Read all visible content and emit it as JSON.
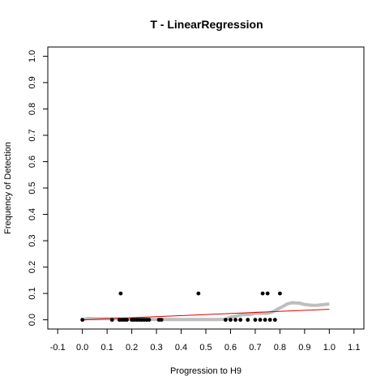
{
  "chart_data": {
    "type": "scatter",
    "title": "T - LinearRegression",
    "xlabel": "Progression to H9",
    "ylabel": "Frequency of Detection",
    "xlim": [
      -0.14,
      1.14
    ],
    "ylim": [
      -0.035,
      1.035
    ],
    "x_ticks": [
      "-0.1",
      "0.0",
      "0.1",
      "0.2",
      "0.3",
      "0.4",
      "0.5",
      "0.6",
      "0.7",
      "0.8",
      "0.9",
      "1.0",
      "1.1"
    ],
    "y_ticks": [
      "0.0",
      "0.1",
      "0.2",
      "0.3",
      "0.4",
      "0.5",
      "0.6",
      "0.7",
      "0.8",
      "0.9",
      "1.0"
    ],
    "grid": false,
    "colors": {
      "points": "#000000",
      "smooth": "#bebebe",
      "fit": "#dd0000"
    },
    "series": [
      {
        "type": "scatter",
        "x": [
          0.0,
          0.12,
          0.15,
          0.155,
          0.16,
          0.17,
          0.18,
          0.2,
          0.21,
          0.22,
          0.23,
          0.24,
          0.25,
          0.26,
          0.27,
          0.31,
          0.32,
          0.47,
          0.58,
          0.6,
          0.62,
          0.64,
          0.67,
          0.7,
          0.72,
          0.73,
          0.74,
          0.75,
          0.76,
          0.78,
          0.8
        ],
        "y": [
          0.0,
          0.0,
          0.0,
          0.1,
          0.0,
          0.0,
          0.0,
          0.0,
          0.0,
          0.0,
          0.0,
          0.0,
          0.0,
          0.0,
          0.0,
          0.0,
          0.0,
          0.1,
          0.0,
          0.0,
          0.0,
          0.0,
          0.0,
          0.0,
          0.0,
          0.1,
          0.0,
          0.1,
          0.0,
          0.0,
          0.1
        ]
      },
      {
        "type": "line",
        "x": [
          0.0,
          0.02,
          0.05,
          0.1,
          0.15,
          0.2,
          0.25,
          0.3,
          0.35,
          0.4,
          0.45,
          0.5,
          0.55,
          0.58,
          0.6,
          0.63,
          0.65,
          0.68,
          0.7,
          0.72,
          0.75,
          0.77,
          0.78,
          0.79,
          0.8,
          0.81,
          0.83,
          0.85,
          0.88,
          0.9,
          0.93,
          0.95,
          0.98,
          1.0
        ],
        "y": [
          0.0,
          0.005,
          0.004,
          0.004,
          0.003,
          0.002,
          0.002,
          0.001,
          0.001,
          0.001,
          0.001,
          0.001,
          0.001,
          0.002,
          0.01,
          0.015,
          0.02,
          0.02,
          0.025,
          0.025,
          0.025,
          0.03,
          0.035,
          0.04,
          0.045,
          0.05,
          0.06,
          0.065,
          0.063,
          0.058,
          0.055,
          0.055,
          0.058,
          0.06
        ]
      },
      {
        "type": "line",
        "x": [
          0.0,
          1.0
        ],
        "y": [
          0.0,
          0.04
        ]
      }
    ]
  }
}
